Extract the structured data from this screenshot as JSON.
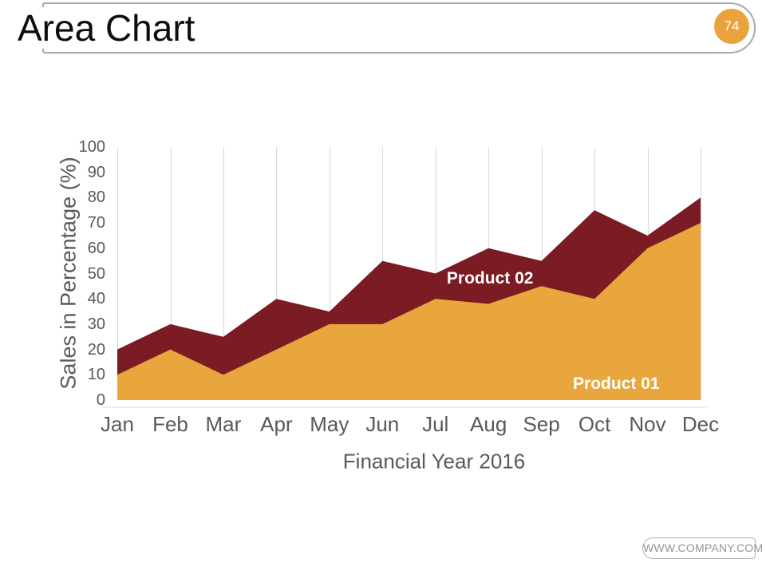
{
  "slide": {
    "title": "Area Chart",
    "page_number": "74",
    "footer_url": "WWW.COMPANY.COM"
  },
  "chart_data": {
    "type": "area",
    "categories": [
      "Jan",
      "Feb",
      "Mar",
      "Apr",
      "May",
      "Jun",
      "Jul",
      "Aug",
      "Sep",
      "Oct",
      "Nov",
      "Dec"
    ],
    "series": [
      {
        "name": "Product 02",
        "color": "#7b1b23",
        "values": [
          20,
          30,
          25,
          40,
          35,
          55,
          50,
          60,
          55,
          75,
          65,
          80
        ],
        "label": {
          "text": "Product 02",
          "month_index": 7.03,
          "value": 48
        }
      },
      {
        "name": "Product 01",
        "color": "#e9a63d",
        "values": [
          10,
          20,
          10,
          20,
          30,
          30,
          40,
          38,
          45,
          40,
          60,
          70
        ],
        "label": {
          "text": "Product 01",
          "month_index": 9.41,
          "value": 6.3
        }
      }
    ],
    "xlabel": "Financial Year 2016",
    "ylabel": "Sales in Percentage (%)",
    "ylim": [
      0,
      100
    ],
    "ytick_step": 10,
    "grid": "vertical-only",
    "legend_position": "labels-inside-areas",
    "overlap": "series overlap (Product 02 drawn behind Product 01), not stacked"
  },
  "colors": {
    "accent_orange": "#e8a33c",
    "accent_maroon": "#7b1b23",
    "axis_text": "#595959",
    "gridline": "#d8d8d8",
    "header_border": "#a8a8a8",
    "footer_text": "#959595",
    "badge_text": "#ffffff"
  }
}
